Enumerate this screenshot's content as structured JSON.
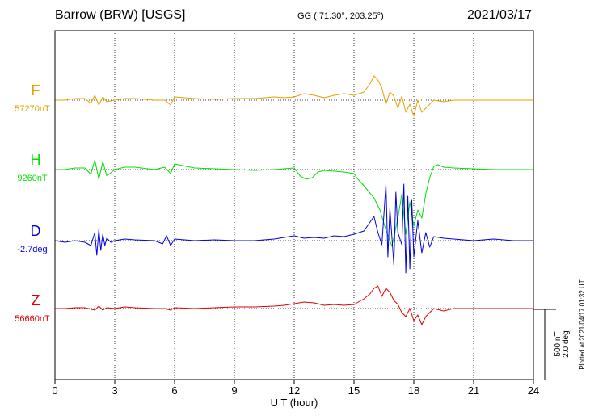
{
  "header": {
    "title": "Barrow (BRW)  [USGS]",
    "coords": "GG ( 71.30°, 203.25°)",
    "date": "2021/03/17"
  },
  "plotted_note": "Plotted at 2021/04/17 01:32 UT",
  "chart_data": {
    "type": "line",
    "xlabel": "U T (hour)",
    "xlim": [
      0,
      24
    ],
    "xticks": [
      "0",
      "3",
      "6",
      "9",
      "12",
      "15",
      "18",
      "21",
      "24"
    ],
    "scale_bar": [
      "500 nT",
      "2.0 deg"
    ],
    "series": [
      {
        "name": "F",
        "baseline_label": "57270nT",
        "color": "#e6a000",
        "x": [
          0,
          0.5,
          1,
          1.5,
          1.8,
          2,
          2.2,
          2.4,
          2.6,
          3,
          3.5,
          4,
          5,
          5.5,
          5.8,
          6,
          7,
          8,
          9,
          10,
          11,
          11.5,
          12,
          12.5,
          13,
          13.5,
          14,
          14.5,
          15,
          15.5,
          15.8,
          16,
          16.2,
          16.4,
          16.6,
          16.8,
          17,
          17.2,
          17.4,
          17.6,
          17.8,
          18,
          18.2,
          18.4,
          18.6,
          18.8,
          19,
          19.5,
          20,
          21,
          22,
          23,
          24
        ],
        "y": [
          0,
          0,
          2,
          2,
          -4,
          6,
          -6,
          4,
          -2,
          0,
          2,
          2,
          0,
          0,
          -6,
          4,
          2,
          1,
          2,
          2,
          4,
          3,
          4,
          8,
          6,
          3,
          6,
          8,
          6,
          10,
          20,
          30,
          25,
          15,
          -5,
          10,
          5,
          -10,
          5,
          -15,
          -5,
          -20,
          0,
          -15,
          -10,
          -5,
          0,
          -2,
          0,
          0,
          0,
          0,
          0
        ]
      },
      {
        "name": "H",
        "baseline_label": "9260nT",
        "color": "#00e000",
        "x": [
          0,
          0.5,
          1,
          1.5,
          1.8,
          2,
          2.2,
          2.4,
          2.6,
          3,
          3.5,
          4,
          5,
          5.5,
          5.8,
          6,
          7,
          8,
          9,
          10,
          11,
          11.5,
          12,
          12.3,
          12.6,
          12.9,
          13.2,
          13.5,
          14,
          14.5,
          15,
          15.2,
          15.5,
          16,
          16.3,
          16.6,
          16.9,
          17.2,
          17.4,
          17.6,
          17.8,
          18,
          18.2,
          18.4,
          18.6,
          18.8,
          19,
          19.2,
          19.5,
          20,
          21,
          22,
          23,
          24
        ],
        "y": [
          0,
          0,
          2,
          2,
          -6,
          12,
          -12,
          10,
          -8,
          0,
          3,
          3,
          0,
          3,
          -5,
          7,
          2,
          1,
          0,
          -1,
          0,
          1,
          2,
          -8,
          -12,
          -10,
          -3,
          -1,
          -2,
          -3,
          -5,
          -12,
          -20,
          -35,
          -50,
          -75,
          -95,
          -60,
          -30,
          -80,
          -40,
          -70,
          -50,
          -60,
          -30,
          -10,
          4,
          6,
          3,
          2,
          1,
          0,
          0,
          0
        ]
      },
      {
        "name": "D",
        "baseline_label": "-2.7deg",
        "color": "#0000e0",
        "x": [
          0,
          0.5,
          1,
          1.5,
          1.8,
          2,
          2.1,
          2.2,
          2.3,
          2.4,
          2.5,
          2.6,
          2.8,
          3,
          3.5,
          4,
          5,
          5.4,
          5.6,
          5.8,
          6,
          7,
          8,
          9,
          10,
          11,
          11.5,
          12,
          12.5,
          13,
          13.5,
          14,
          14.5,
          15,
          15.5,
          16,
          16.2,
          16.4,
          16.6,
          16.7,
          16.8,
          17,
          17.1,
          17.2,
          17.4,
          17.5,
          17.6,
          17.7,
          17.8,
          17.9,
          18,
          18.2,
          18.4,
          18.6,
          18.8,
          19,
          19.5,
          20,
          21,
          22,
          23,
          24
        ],
        "y": [
          0,
          -2,
          0,
          -2,
          -6,
          10,
          -18,
          14,
          -12,
          8,
          -6,
          3,
          -2,
          0,
          2,
          1,
          0,
          -4,
          6,
          -6,
          2,
          0,
          1,
          0,
          0,
          2,
          4,
          6,
          3,
          4,
          3,
          6,
          5,
          8,
          12,
          30,
          10,
          -5,
          70,
          -20,
          40,
          -30,
          60,
          10,
          -5,
          70,
          -40,
          55,
          -35,
          50,
          -20,
          25,
          -15,
          10,
          -8,
          5,
          3,
          2,
          0,
          2,
          0,
          0
        ]
      },
      {
        "name": "Z",
        "baseline_label": "56660nT",
        "color": "#e00000",
        "x": [
          0,
          0.5,
          1,
          1.5,
          2,
          2.2,
          2.4,
          2.6,
          3,
          3.5,
          4,
          5,
          5.5,
          5.8,
          6,
          7,
          8,
          9,
          10,
          11,
          11.5,
          12,
          12.5,
          13,
          13.5,
          14,
          14.5,
          15,
          15.5,
          15.8,
          16,
          16.2,
          16.4,
          16.6,
          16.8,
          17,
          17.2,
          17.4,
          17.6,
          17.8,
          18,
          18.2,
          18.4,
          18.6,
          18.8,
          19,
          19.5,
          20,
          21,
          22,
          23,
          24
        ],
        "y": [
          0,
          0,
          1,
          1,
          -2,
          3,
          -2,
          1,
          0,
          2,
          1,
          0,
          0,
          -2,
          1,
          0,
          1,
          2,
          2,
          3,
          4,
          6,
          8,
          7,
          4,
          5,
          4,
          5,
          12,
          18,
          25,
          28,
          15,
          25,
          20,
          10,
          5,
          -5,
          -10,
          0,
          -15,
          -8,
          -20,
          -10,
          -5,
          0,
          -3,
          0,
          0,
          0,
          0,
          0
        ]
      }
    ]
  }
}
